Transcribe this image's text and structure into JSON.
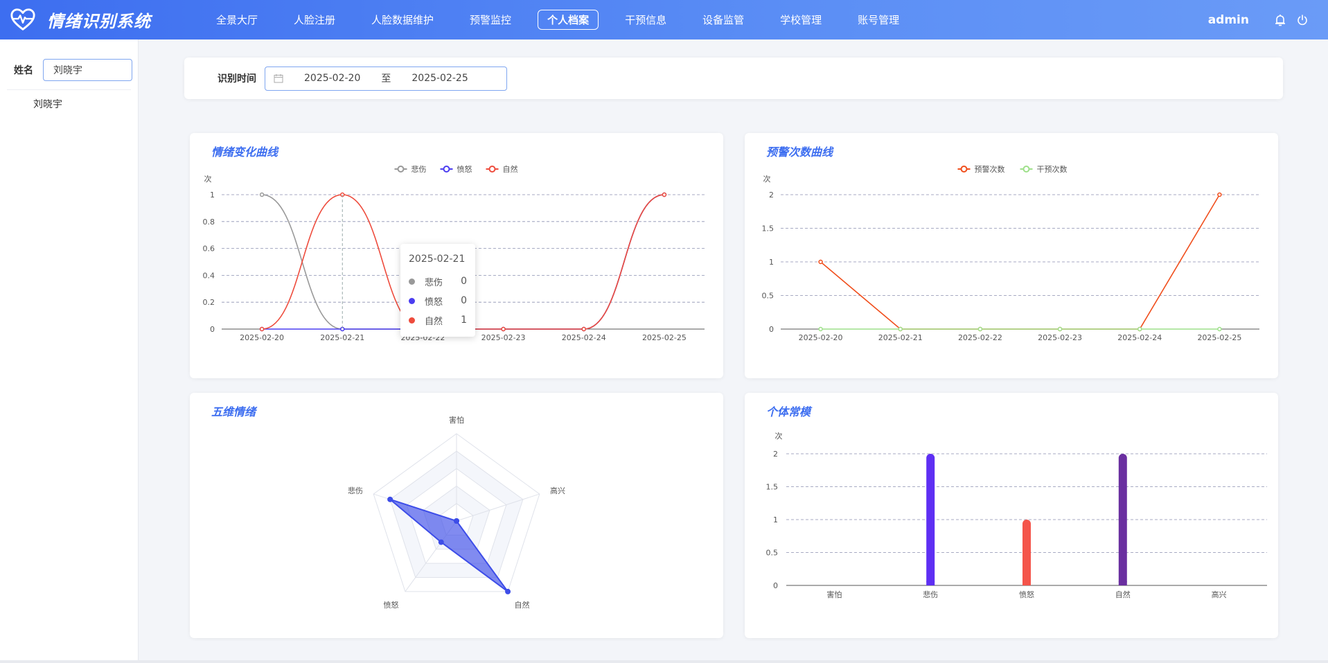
{
  "app": {
    "title": "情绪识别系统"
  },
  "nav": [
    {
      "label": "全景大厅"
    },
    {
      "label": "人脸注册"
    },
    {
      "label": "人脸数据维护"
    },
    {
      "label": "预警监控"
    },
    {
      "label": "个人档案",
      "active": true
    },
    {
      "label": "干预信息"
    },
    {
      "label": "设备监管"
    },
    {
      "label": "学校管理"
    },
    {
      "label": "账号管理"
    }
  ],
  "header": {
    "user": "admin",
    "icons": [
      "bell-icon",
      "power-icon"
    ]
  },
  "sidebar": {
    "name_label": "姓名",
    "name_value": "刘晓宇",
    "items": [
      {
        "label": "刘晓宇"
      }
    ]
  },
  "filter": {
    "label": "识别时间",
    "start": "2025-02-20",
    "separator": "至",
    "end": "2025-02-25"
  },
  "cards": {
    "emotion_curve": {
      "title": "情绪变化曲线"
    },
    "warning_curve": {
      "title": "预警次数曲线"
    },
    "five_dim": {
      "title": "五维情绪"
    },
    "baseline": {
      "title": "个体常模"
    }
  },
  "tooltip": {
    "date": "2025-02-21",
    "rows": [
      {
        "name": "悲伤",
        "value": "0",
        "color": "#999999"
      },
      {
        "name": "愤怒",
        "value": "0",
        "color": "#4b3df0"
      },
      {
        "name": "自然",
        "value": "1",
        "color": "#ee4b3c"
      }
    ]
  },
  "chart_data": [
    {
      "type": "line",
      "title": "情绪变化曲线",
      "ylabel": "次",
      "x": [
        "2025-02-20",
        "2025-02-21",
        "2025-02-22",
        "2025-02-23",
        "2025-02-24",
        "2025-02-25"
      ],
      "ylim": [
        0,
        1
      ],
      "yticks": [
        "0",
        "0.2",
        "0.4",
        "0.6",
        "0.8",
        "1"
      ],
      "series": [
        {
          "name": "悲伤",
          "color": "#999999",
          "values": [
            1,
            0,
            0,
            0,
            0,
            1
          ]
        },
        {
          "name": "愤怒",
          "color": "#4b3df0",
          "values": [
            0,
            0,
            0,
            0,
            0,
            1
          ]
        },
        {
          "name": "自然",
          "color": "#ee4b3c",
          "values": [
            0,
            1,
            0,
            0,
            0,
            1
          ]
        }
      ],
      "legend": "top-center",
      "grid": true
    },
    {
      "type": "line",
      "title": "预警次数曲线",
      "ylabel": "次",
      "x": [
        "2025-02-20",
        "2025-02-21",
        "2025-02-22",
        "2025-02-23",
        "2025-02-24",
        "2025-02-25"
      ],
      "ylim": [
        0,
        2
      ],
      "yticks": [
        "0",
        "0.5",
        "1",
        "1.5",
        "2"
      ],
      "series": [
        {
          "name": "预警次数",
          "color": "#f04e1c",
          "values": [
            1,
            0,
            0,
            0,
            0,
            2
          ]
        },
        {
          "name": "干预次数",
          "color": "#9ee08a",
          "values": [
            0,
            0,
            0,
            0,
            0,
            0
          ]
        }
      ],
      "legend": "top-center",
      "grid": true
    },
    {
      "type": "radar",
      "title": "五维情绪",
      "indicators": [
        "害怕",
        "高兴",
        "自然",
        "愤怒",
        "悲伤"
      ],
      "max": 2,
      "values": [
        0,
        0,
        2,
        0.6,
        1.6
      ],
      "color": "#3d4de8"
    },
    {
      "type": "bar",
      "title": "个体常模",
      "ylabel": "次",
      "categories": [
        "害怕",
        "悲伤",
        "愤怒",
        "自然",
        "高兴"
      ],
      "values": [
        0,
        2,
        1,
        2,
        0
      ],
      "colors": [
        "#5b6ff0",
        "#5e2ff3",
        "#f4544a",
        "#6a2fa0",
        "#5b6ff0"
      ],
      "ylim": [
        0,
        2
      ],
      "yticks": [
        "0",
        "0.5",
        "1",
        "1.5",
        "2"
      ],
      "grid": true
    }
  ]
}
